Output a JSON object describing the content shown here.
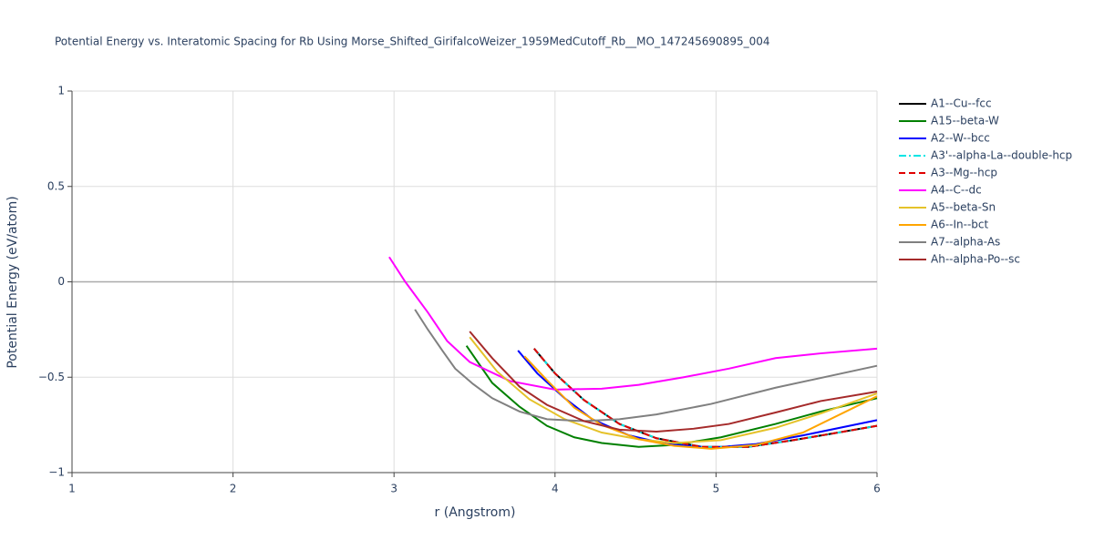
{
  "chart_data": {
    "type": "line",
    "title": "Potential Energy vs. Interatomic Spacing for Rb Using Morse_Shifted_GirifalcoWeizer_1959MedCutoff_Rb__MO_147245690895_004",
    "x_label": "r (Angstrom)",
    "y_label": "Potential Energy (eV/atom)",
    "xlim": [
      1,
      6
    ],
    "ylim": [
      -1,
      1
    ],
    "xticks": [
      1,
      2,
      3,
      4,
      5,
      6
    ],
    "yticks": [
      {
        "value": -1,
        "label": "−1"
      },
      {
        "value": -0.5,
        "label": "−0.5"
      },
      0,
      0.5,
      1
    ],
    "grid": true,
    "series": [
      {
        "name": "A1--Cu--fcc",
        "color": "#000000",
        "dash": "solid",
        "x": [
          3.87,
          4.0,
          4.18,
          4.4,
          4.63,
          4.91,
          5.2,
          5.48,
          5.76,
          6
        ],
        "values": [
          -0.35,
          -0.48,
          -0.62,
          -0.745,
          -0.82,
          -0.865,
          -0.865,
          -0.83,
          -0.79,
          -0.755
        ]
      },
      {
        "name": "A15--beta-W",
        "color": "#008000",
        "dash": "solid",
        "x": [
          3.45,
          3.61,
          3.78,
          3.95,
          4.12,
          4.29,
          4.52,
          4.74,
          5.03,
          5.37,
          5.65,
          6
        ],
        "values": [
          -0.335,
          -0.53,
          -0.655,
          -0.755,
          -0.815,
          -0.845,
          -0.865,
          -0.855,
          -0.815,
          -0.745,
          -0.68,
          -0.61
        ]
      },
      {
        "name": "A2--W--bcc",
        "color": "#0000ff",
        "dash": "solid",
        "x": [
          3.77,
          3.89,
          4.06,
          4.23,
          4.46,
          4.69,
          4.97,
          5.25,
          5.54,
          6
        ],
        "values": [
          -0.36,
          -0.48,
          -0.61,
          -0.72,
          -0.805,
          -0.85,
          -0.87,
          -0.85,
          -0.805,
          -0.725
        ]
      },
      {
        "name": "A3'--alpha-La--double-hcp",
        "color": "#00e5e5",
        "dash": "dashdot",
        "x": [
          3.87,
          4.0,
          4.18,
          4.4,
          4.63,
          4.91,
          5.2,
          5.48,
          5.76,
          6
        ],
        "values": [
          -0.35,
          -0.48,
          -0.62,
          -0.745,
          -0.82,
          -0.865,
          -0.865,
          -0.83,
          -0.79,
          -0.755
        ]
      },
      {
        "name": "A3--Mg--hcp",
        "color": "#e00000",
        "dash": "dash",
        "x": [
          3.87,
          4.0,
          4.18,
          4.4,
          4.63,
          4.91,
          5.2,
          5.48,
          5.76,
          6
        ],
        "values": [
          -0.35,
          -0.48,
          -0.62,
          -0.745,
          -0.82,
          -0.865,
          -0.865,
          -0.83,
          -0.79,
          -0.755
        ]
      },
      {
        "name": "A4--C--dc",
        "color": "#ff00ff",
        "dash": "solid",
        "x": [
          2.97,
          3.07,
          3.21,
          3.33,
          3.47,
          3.72,
          4.0,
          4.29,
          4.52,
          4.8,
          5.08,
          5.37,
          5.65,
          6
        ],
        "values": [
          0.13,
          0,
          -0.16,
          -0.31,
          -0.42,
          -0.52,
          -0.565,
          -0.56,
          -0.54,
          -0.5,
          -0.455,
          -0.4,
          -0.375,
          -0.35
        ]
      },
      {
        "name": "A5--beta-Sn",
        "color": "#e5c22a",
        "dash": "solid",
        "x": [
          3.47,
          3.64,
          3.84,
          4.06,
          4.29,
          4.52,
          4.74,
          5.03,
          5.37,
          5.65,
          6
        ],
        "values": [
          -0.29,
          -0.47,
          -0.615,
          -0.72,
          -0.79,
          -0.825,
          -0.845,
          -0.83,
          -0.765,
          -0.69,
          -0.585
        ]
      },
      {
        "name": "A6--In--bct",
        "color": "#ffa500",
        "dash": "solid",
        "x": [
          3.81,
          3.95,
          4.12,
          4.29,
          4.52,
          4.74,
          4.97,
          5.25,
          5.54,
          6
        ],
        "values": [
          -0.39,
          -0.515,
          -0.66,
          -0.75,
          -0.825,
          -0.86,
          -0.875,
          -0.855,
          -0.79,
          -0.6
        ]
      },
      {
        "name": "A7--alpha-As",
        "color": "#808080",
        "dash": "solid",
        "x": [
          3.13,
          3.21,
          3.3,
          3.38,
          3.49,
          3.61,
          3.78,
          3.95,
          4.18,
          4.4,
          4.63,
          4.97,
          5.37,
          6
        ],
        "values": [
          -0.145,
          -0.25,
          -0.36,
          -0.455,
          -0.535,
          -0.61,
          -0.68,
          -0.72,
          -0.73,
          -0.72,
          -0.695,
          -0.64,
          -0.555,
          -0.44
        ]
      },
      {
        "name": "Ah--alpha-Po--sc",
        "color": "#a52a2a",
        "dash": "solid",
        "x": [
          3.47,
          3.61,
          3.78,
          3.95,
          4.18,
          4.4,
          4.63,
          4.86,
          5.08,
          5.37,
          5.65,
          6
        ],
        "values": [
          -0.26,
          -0.4,
          -0.55,
          -0.645,
          -0.73,
          -0.775,
          -0.785,
          -0.77,
          -0.745,
          -0.685,
          -0.625,
          -0.575
        ]
      }
    ]
  }
}
